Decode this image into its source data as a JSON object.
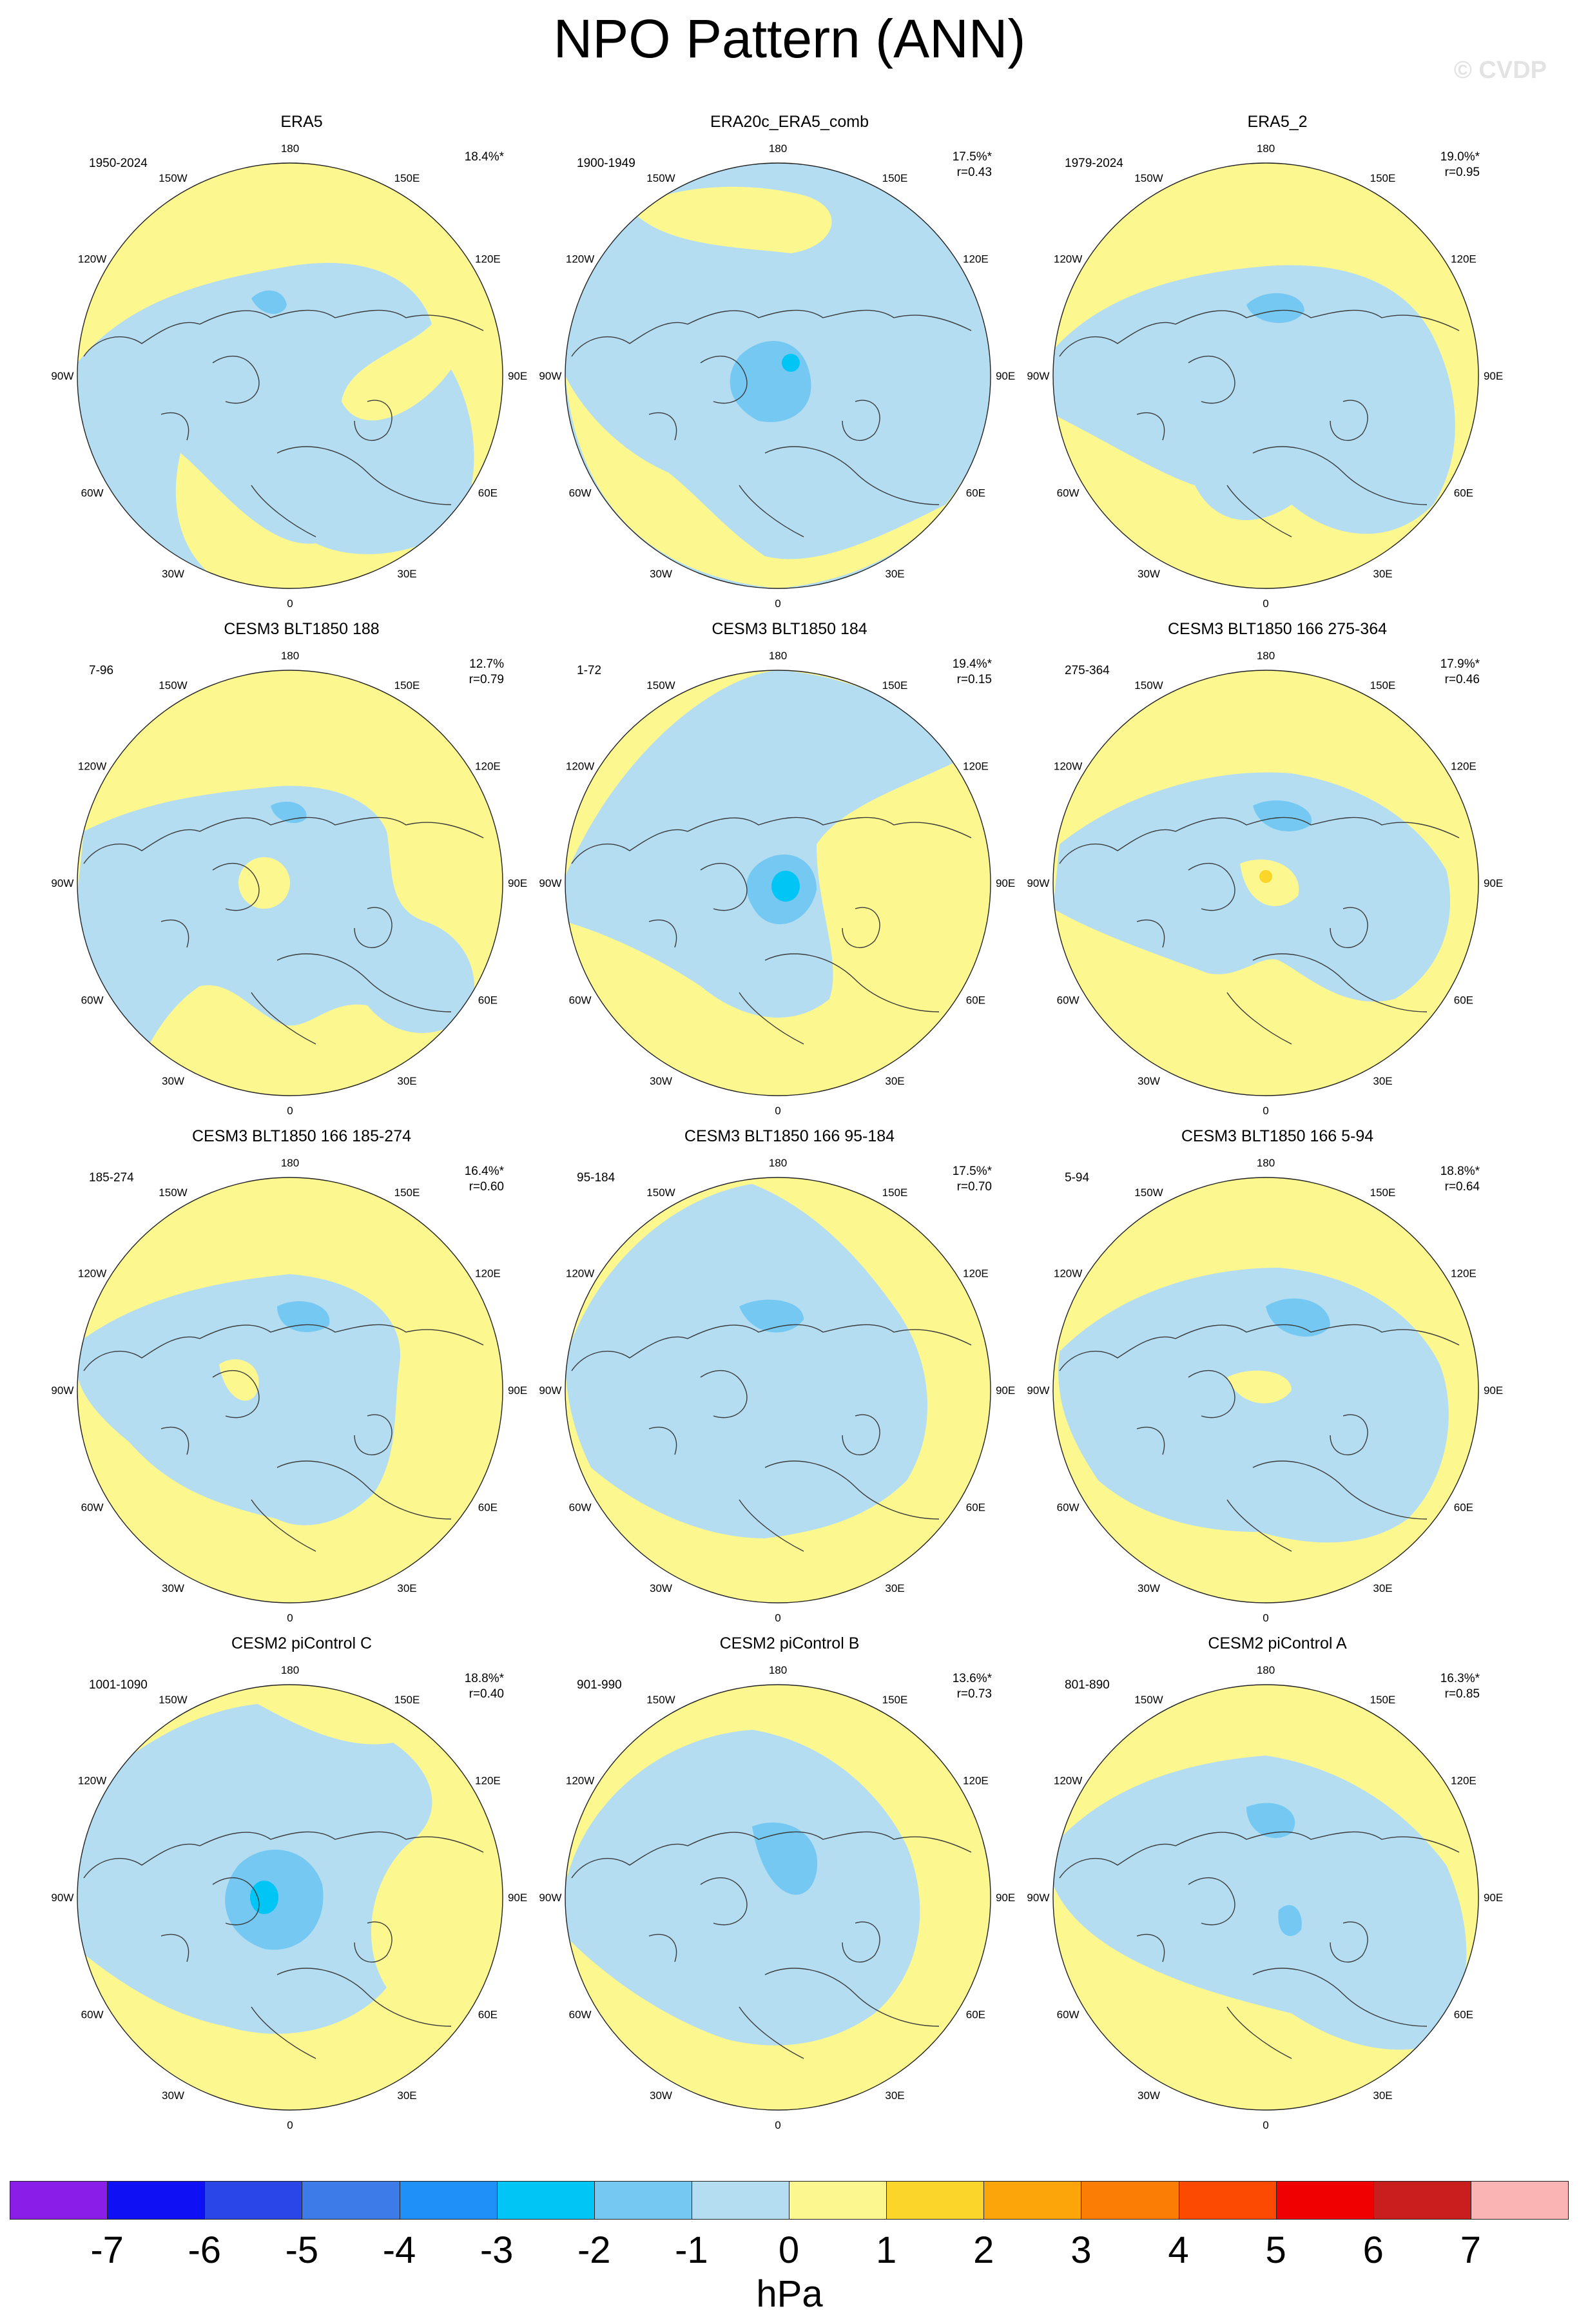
{
  "title": "NPO Pattern (ANN)",
  "watermark": "© CVDP",
  "lon_labels": [
    "180",
    "150E",
    "120E",
    "90E",
    "60E",
    "30E",
    "0",
    "30W",
    "60W",
    "90W",
    "120W",
    "150W"
  ],
  "colors": {
    "land_outline": "#3a3a3a",
    "circle_edge": "#222222",
    "neg_1": "#b4ddf2",
    "neg_2": "#74c8f2",
    "neg_3": "#00c5f5",
    "pos_1": "#fdf78f",
    "pos_2": "#fcd52a"
  },
  "panels": [
    {
      "title": "ERA5",
      "period": "1950-2024",
      "pct": "18.4%*",
      "r": "",
      "pattern": "era5"
    },
    {
      "title": "ERA20c_ERA5_comb",
      "period": "1900-1949",
      "pct": "17.5%*",
      "r": "r=0.43",
      "pattern": "era20c"
    },
    {
      "title": "ERA5_2",
      "period": "1979-2024",
      "pct": "19.0%*",
      "r": "r=0.95",
      "pattern": "era5_2"
    },
    {
      "title": "CESM3 BLT1850 188",
      "period": "7-96",
      "pct": "12.7%",
      "r": "r=0.79",
      "pattern": "c188"
    },
    {
      "title": "CESM3 BLT1850 184",
      "period": "1-72",
      "pct": "19.4%*",
      "r": "r=0.15",
      "pattern": "c184"
    },
    {
      "title": "CESM3 BLT1850 166 275-364",
      "period": "275-364",
      "pct": "17.9%*",
      "r": "r=0.46",
      "pattern": "c166a"
    },
    {
      "title": "CESM3 BLT1850 166 185-274",
      "period": "185-274",
      "pct": "16.4%*",
      "r": "r=0.60",
      "pattern": "c166b"
    },
    {
      "title": "CESM3 BLT1850 166 95-184",
      "period": "95-184",
      "pct": "17.5%*",
      "r": "r=0.70",
      "pattern": "c166c"
    },
    {
      "title": "CESM3 BLT1850 166 5-94",
      "period": "5-94",
      "pct": "18.8%*",
      "r": "r=0.64",
      "pattern": "c166d"
    },
    {
      "title": "CESM2 piControl C",
      "period": "1001-1090",
      "pct": "18.8%*",
      "r": "r=0.40",
      "pattern": "pic_c"
    },
    {
      "title": "CESM2 piControl B",
      "period": "901-990",
      "pct": "13.6%*",
      "r": "r=0.73",
      "pattern": "pic_b"
    },
    {
      "title": "CESM2 piControl A",
      "period": "801-890",
      "pct": "16.3%*",
      "r": "r=0.85",
      "pattern": "pic_a"
    }
  ],
  "colorbar": {
    "colors": [
      "#8a1ee8",
      "#1010f5",
      "#2b46e6",
      "#3d7be8",
      "#1e90f8",
      "#00c5f5",
      "#74c8f2",
      "#b4ddf2",
      "#fdf78f",
      "#fcd52a",
      "#fca50a",
      "#fc7d05",
      "#fc4a02",
      "#f00000",
      "#c81e1e",
      "#fbb4b4"
    ],
    "labels": [
      "-7",
      "-6",
      "-5",
      "-4",
      "-3",
      "-2",
      "-1",
      "0",
      "1",
      "2",
      "3",
      "4",
      "5",
      "6",
      "7"
    ],
    "unit": "hPa"
  }
}
